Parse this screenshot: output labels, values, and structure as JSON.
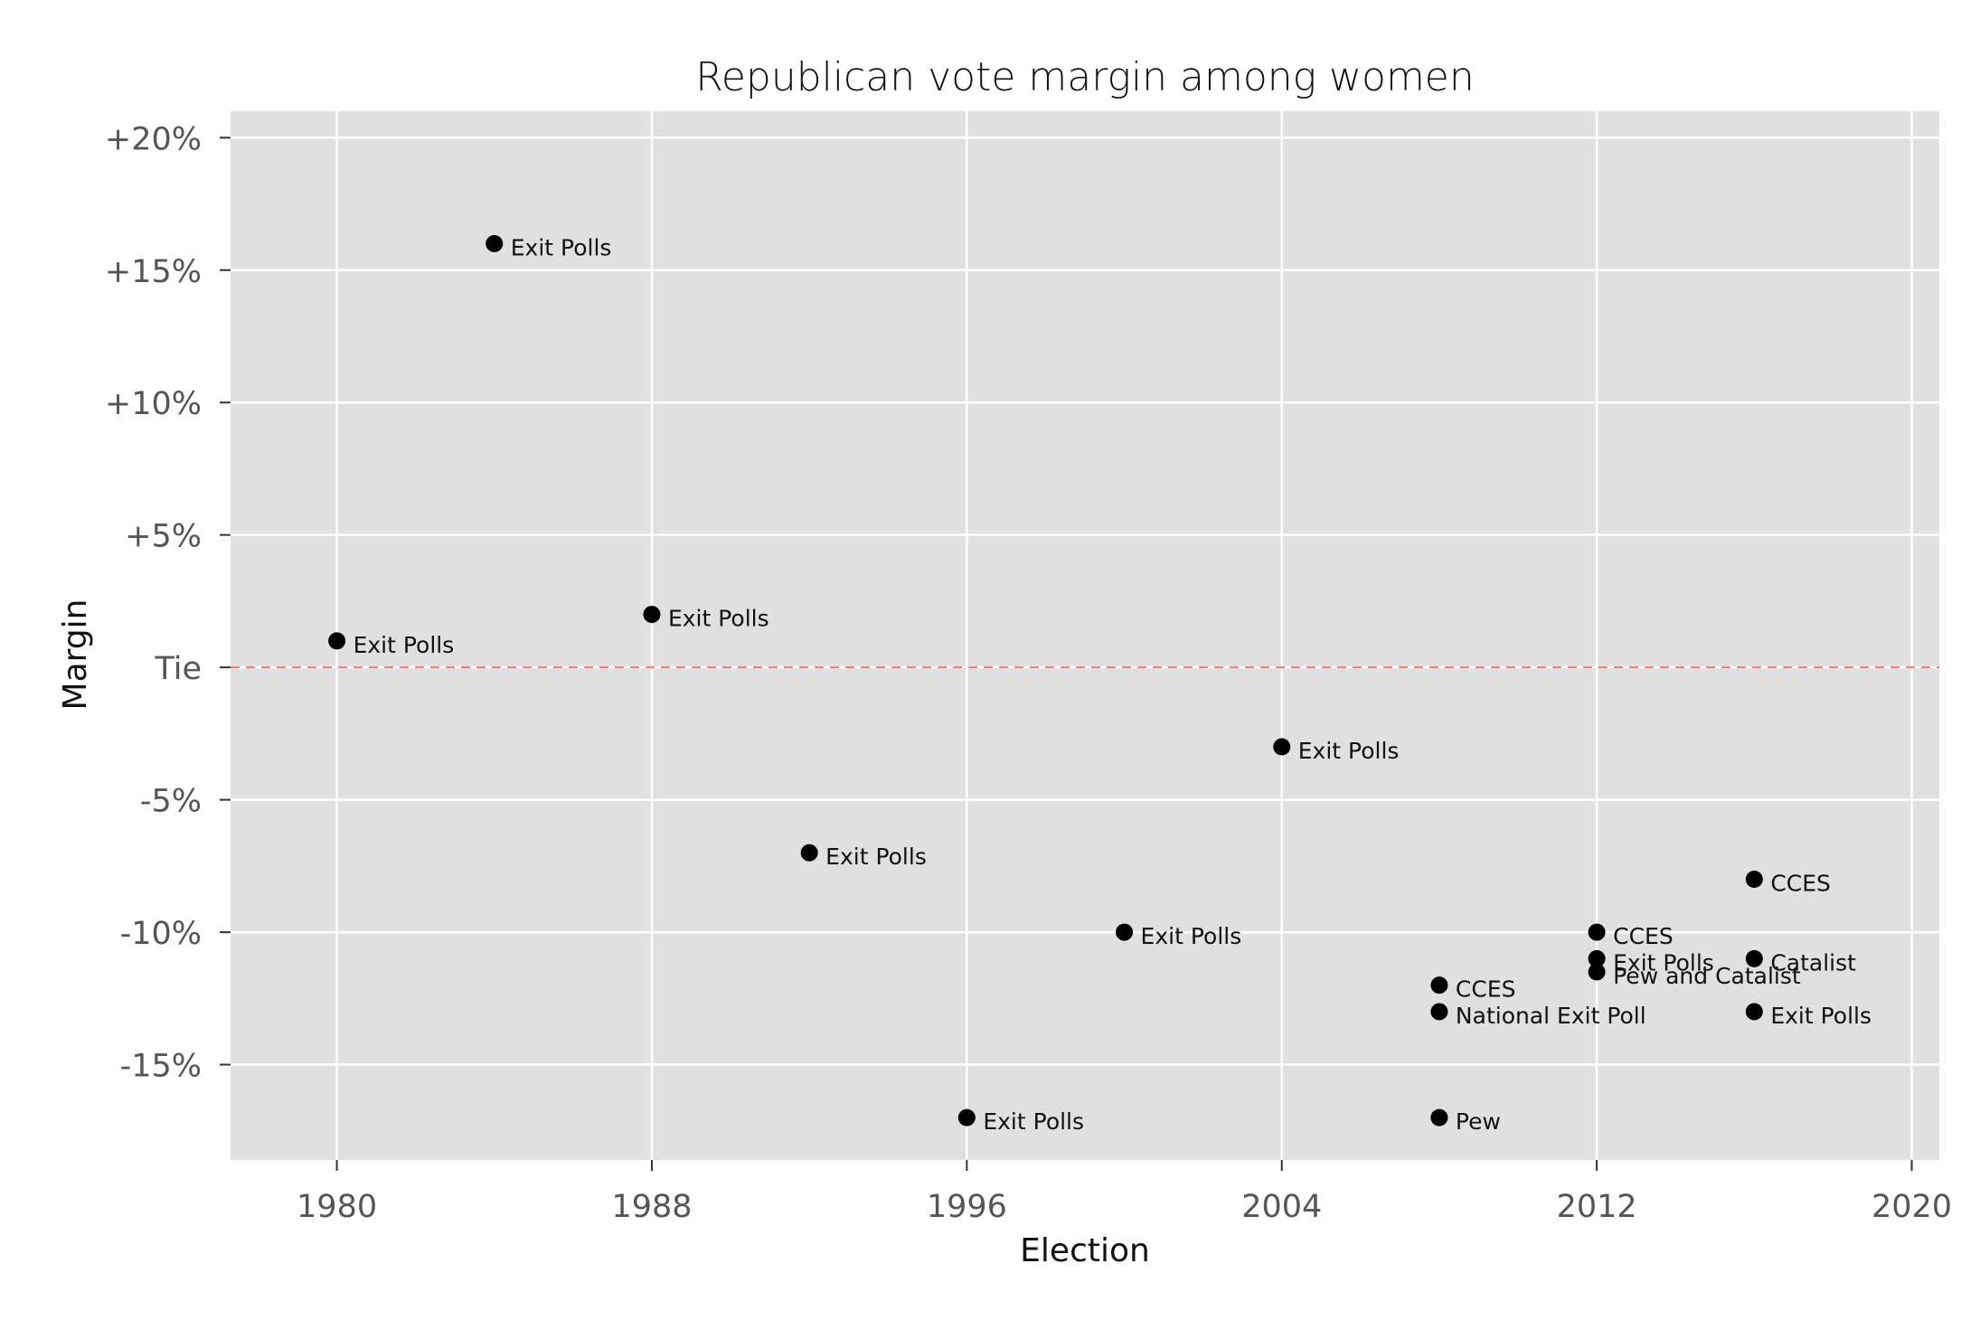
{
  "chart_data": {
    "type": "scatter",
    "title": "Republican vote margin among women",
    "xlabel": "Election",
    "ylabel": "Margin",
    "xlim": [
      1977.3,
      2020.7
    ],
    "ylim": [
      -18.6,
      21.0
    ],
    "x_ticks": [
      1980,
      1988,
      1996,
      2004,
      2012,
      2020
    ],
    "y_ticks": [
      {
        "value": 20,
        "label": "+20%"
      },
      {
        "value": 15,
        "label": "+15%"
      },
      {
        "value": 10,
        "label": "+10%"
      },
      {
        "value": 5,
        "label": "+5%"
      },
      {
        "value": 0,
        "label": "Tie"
      },
      {
        "value": -5,
        "label": "-5%"
      },
      {
        "value": -10,
        "label": "-10%"
      },
      {
        "value": -15,
        "label": "-15%"
      }
    ],
    "reference_line": {
      "value": 0,
      "color": "#f8766d",
      "style": "dashed"
    },
    "grid": true,
    "background": "#e0e0e0",
    "point_color": "#000000",
    "points": [
      {
        "x": 1980,
        "y": 1,
        "label": "Exit Polls"
      },
      {
        "x": 1984,
        "y": 16,
        "label": "Exit Polls"
      },
      {
        "x": 1988,
        "y": 2,
        "label": "Exit Polls"
      },
      {
        "x": 1992,
        "y": -7,
        "label": "Exit Polls"
      },
      {
        "x": 1996,
        "y": -17,
        "label": "Exit Polls"
      },
      {
        "x": 2000,
        "y": -10,
        "label": "Exit Polls"
      },
      {
        "x": 2004,
        "y": -3,
        "label": "Exit Polls"
      },
      {
        "x": 2008,
        "y": -12,
        "label": "CCES"
      },
      {
        "x": 2008,
        "y": -13,
        "label": "National Exit Poll"
      },
      {
        "x": 2008,
        "y": -17,
        "label": "Pew"
      },
      {
        "x": 2012,
        "y": -10,
        "label": "CCES"
      },
      {
        "x": 2012,
        "y": -11,
        "label": "Exit Polls"
      },
      {
        "x": 2012,
        "y": -11.5,
        "label": "Pew and Catalist"
      },
      {
        "x": 2016,
        "y": -8,
        "label": "CCES"
      },
      {
        "x": 2016,
        "y": -11,
        "label": "Catalist"
      },
      {
        "x": 2016,
        "y": -13,
        "label": "Exit Polls"
      }
    ]
  }
}
